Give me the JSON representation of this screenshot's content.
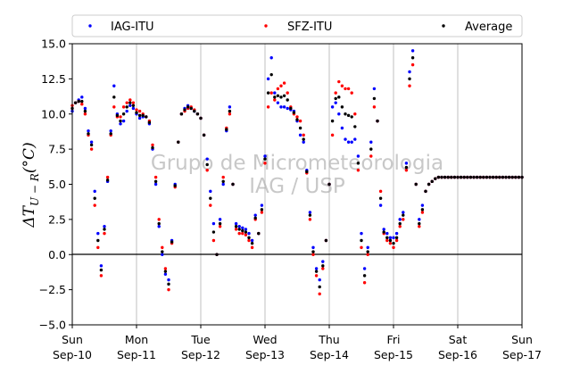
{
  "chart_data": {
    "type": "scatter",
    "ylabel_base": "ΔT",
    "ylabel_sub": "U − R",
    "ylabel_unit": "(°C)",
    "ylim": [
      -5.0,
      15.0
    ],
    "yticks": [
      -5.0,
      -2.5,
      0.0,
      2.5,
      5.0,
      7.5,
      10.0,
      12.5,
      15.0
    ],
    "ytick_labels": [
      "−5.0",
      "−2.5",
      "0.0",
      "2.5",
      "5.0",
      "7.5",
      "10.0",
      "12.5",
      "15.0"
    ],
    "xlim_days": [
      0,
      7
    ],
    "xticks": [
      {
        "day": 0,
        "weekday": "Sun",
        "date": "Sep-10"
      },
      {
        "day": 1,
        "weekday": "Mon",
        "date": "Sep-11"
      },
      {
        "day": 2,
        "weekday": "Tue",
        "date": "Sep-12"
      },
      {
        "day": 3,
        "weekday": "Wed",
        "date": "Sep-13"
      },
      {
        "day": 4,
        "weekday": "Thu",
        "date": "Sep-14"
      },
      {
        "day": 5,
        "weekday": "Fri",
        "date": "Sep-15"
      },
      {
        "day": 6,
        "weekday": "Sat",
        "date": "Sep-16"
      },
      {
        "day": 7,
        "weekday": "Sun",
        "date": "Sep-17"
      }
    ],
    "grid": "vertical",
    "zero_line": true,
    "legend_placement": "top",
    "watermark": [
      "Grupo de Micrometeorologia",
      "IAG / USP"
    ],
    "series": [
      {
        "name": "IAG-ITU",
        "color": "#0000ff",
        "x_days": [
          0.0,
          0.05,
          0.1,
          0.15,
          0.2,
          0.25,
          0.3,
          0.35,
          0.4,
          0.45,
          0.5,
          0.55,
          0.6,
          0.65,
          0.7,
          0.75,
          0.8,
          0.85,
          0.9,
          0.95,
          1.0,
          1.05,
          1.1,
          1.15,
          1.2,
          1.25,
          1.3,
          1.35,
          1.4,
          1.45,
          1.5,
          1.55,
          1.6,
          1.65,
          1.7,
          1.75,
          1.8,
          1.85,
          1.9,
          1.95,
          2.0,
          2.05,
          2.1,
          2.15,
          2.2,
          2.25,
          2.3,
          2.35,
          2.4,
          2.45,
          2.5,
          2.55,
          2.6,
          2.65,
          2.7,
          2.75,
          2.8,
          2.85,
          2.9,
          2.95,
          3.0,
          3.05,
          3.1,
          3.15,
          3.2,
          3.25,
          3.3,
          3.35,
          3.4,
          3.45,
          3.5,
          3.55,
          3.6,
          3.65,
          3.7,
          3.75,
          3.8,
          3.85,
          3.9,
          3.95,
          4.0,
          4.05,
          4.1,
          4.15,
          4.2,
          4.25,
          4.3,
          4.35,
          4.4,
          4.45,
          4.5,
          4.55,
          4.6,
          4.65,
          4.7,
          4.75,
          4.8,
          4.85,
          4.9,
          4.95,
          5.0,
          5.05,
          5.1,
          5.15,
          5.2,
          5.25,
          5.3,
          5.35,
          5.4,
          5.45,
          5.5,
          5.55,
          5.6,
          5.65,
          5.7,
          5.75,
          5.8,
          5.85,
          5.9,
          5.95,
          6.0,
          6.05,
          6.1,
          6.15,
          6.2,
          6.25,
          6.3,
          6.35,
          6.4,
          6.45,
          6.5,
          6.55,
          6.6,
          6.65,
          6.7,
          6.75,
          6.8,
          6.85,
          6.9,
          6.95,
          7.0
        ],
        "y": [
          10.2,
          10.8,
          11.0,
          11.2,
          10.4,
          8.8,
          8.0,
          4.5,
          1.5,
          -0.8,
          2.0,
          5.2,
          8.8,
          12.0,
          10.0,
          9.3,
          9.5,
          10.2,
          10.6,
          10.4,
          10.0,
          9.7,
          9.8,
          9.8,
          9.3,
          7.5,
          5.0,
          2.0,
          0.0,
          -1.4,
          -1.8,
          1.0,
          5.0,
          8.0,
          10.0,
          10.4,
          10.6,
          10.4,
          10.2,
          10.0,
          9.7,
          8.5,
          6.8,
          4.5,
          2.2,
          0.0,
          2.5,
          5.0,
          8.8,
          10.5,
          5.0,
          2.2,
          2.0,
          1.9,
          1.8,
          1.5,
          1.0,
          2.8,
          1.5,
          3.5,
          7.0,
          12.5,
          14.0,
          11.5,
          10.8,
          10.5,
          10.5,
          10.4,
          10.3,
          10.2,
          9.5,
          8.5,
          8.0,
          6.0,
          3.0,
          0.5,
          -1.0,
          -1.8,
          -0.5,
          1.0,
          5.0,
          10.5,
          10.8,
          10.0,
          9.0,
          8.2,
          8.0,
          8.0,
          8.2,
          7.0,
          1.5,
          -1.0,
          0.5,
          8.0,
          11.8,
          9.5,
          3.5,
          1.8,
          1.5,
          1.2,
          1.2,
          1.5,
          2.5,
          3.0,
          6.5,
          13.0,
          14.5,
          5.0,
          2.5,
          3.5,
          4.5,
          5.0,
          5.2,
          5.4,
          5.5,
          5.5,
          5.5,
          5.5,
          5.5,
          5.5,
          5.5,
          5.5,
          5.5,
          5.5,
          5.5,
          5.5,
          5.5,
          5.5,
          5.5,
          5.5,
          5.5,
          5.5,
          5.5,
          5.5,
          5.5,
          5.5,
          5.5,
          5.5,
          5.5,
          5.5,
          5.5
        ]
      },
      {
        "name": "SFZ-ITU",
        "color": "#ff0000",
        "x_days": [
          0.0,
          0.05,
          0.1,
          0.15,
          0.2,
          0.25,
          0.3,
          0.35,
          0.4,
          0.45,
          0.5,
          0.55,
          0.6,
          0.65,
          0.7,
          0.75,
          0.8,
          0.85,
          0.9,
          0.95,
          1.0,
          1.05,
          1.1,
          1.15,
          1.2,
          1.25,
          1.3,
          1.35,
          1.4,
          1.45,
          1.5,
          1.55,
          1.6,
          1.65,
          1.7,
          1.75,
          1.8,
          1.85,
          1.9,
          1.95,
          2.0,
          2.05,
          2.1,
          2.15,
          2.2,
          2.25,
          2.3,
          2.35,
          2.4,
          2.45,
          2.5,
          2.55,
          2.6,
          2.65,
          2.7,
          2.75,
          2.8,
          2.85,
          2.9,
          2.95,
          3.0,
          3.05,
          3.1,
          3.15,
          3.2,
          3.25,
          3.3,
          3.35,
          3.4,
          3.45,
          3.5,
          3.55,
          3.6,
          3.65,
          3.7,
          3.75,
          3.8,
          3.85,
          3.9,
          3.95,
          4.0,
          4.05,
          4.1,
          4.15,
          4.2,
          4.25,
          4.3,
          4.35,
          4.4,
          4.45,
          4.5,
          4.55,
          4.6,
          4.65,
          4.7,
          4.75,
          4.8,
          4.85,
          4.9,
          4.95,
          5.0,
          5.05,
          5.1,
          5.15,
          5.2,
          5.25,
          5.3,
          5.35,
          5.4,
          5.45,
          5.5,
          5.55,
          5.6,
          5.65,
          5.7,
          5.75,
          5.8,
          5.85,
          5.9,
          5.95,
          6.0,
          6.05,
          6.1,
          6.15,
          6.2,
          6.25,
          6.3,
          6.35,
          6.4,
          6.45,
          6.5,
          6.55,
          6.6,
          6.65,
          6.7,
          6.75,
          6.8,
          6.85,
          6.9,
          6.95,
          7.0
        ],
        "y": [
          10.6,
          10.8,
          10.9,
          10.7,
          10.0,
          8.5,
          7.5,
          3.5,
          0.5,
          -1.5,
          1.5,
          5.5,
          8.5,
          10.5,
          9.8,
          9.8,
          10.5,
          10.8,
          11.0,
          10.8,
          10.3,
          10.2,
          10.0,
          9.8,
          9.5,
          7.8,
          5.5,
          2.5,
          0.5,
          -1.0,
          -2.5,
          0.8,
          4.8,
          8.0,
          10.0,
          10.2,
          10.4,
          10.5,
          10.3,
          10.0,
          9.7,
          8.5,
          6.0,
          3.5,
          1.0,
          0.0,
          2.0,
          5.5,
          9.0,
          10.0,
          5.0,
          1.8,
          1.5,
          1.5,
          1.4,
          1.0,
          0.5,
          2.5,
          1.5,
          3.0,
          6.5,
          10.5,
          11.5,
          11.0,
          11.8,
          12.0,
          12.2,
          11.5,
          10.5,
          10.0,
          9.8,
          9.5,
          8.5,
          5.8,
          2.5,
          0.0,
          -1.5,
          -2.8,
          -1.0,
          1.0,
          5.0,
          8.5,
          11.5,
          12.3,
          12.0,
          11.8,
          11.8,
          11.5,
          10.0,
          6.0,
          0.5,
          -2.0,
          0.0,
          7.0,
          10.5,
          9.5,
          4.5,
          1.5,
          1.0,
          0.8,
          0.5,
          1.0,
          2.0,
          2.5,
          6.0,
          12.0,
          13.5,
          5.0,
          2.0,
          3.0,
          4.5,
          5.0,
          5.2,
          5.4,
          5.5,
          5.5,
          5.5,
          5.5,
          5.5,
          5.5,
          5.5,
          5.5,
          5.5,
          5.5,
          5.5,
          5.5,
          5.5,
          5.5,
          5.5,
          5.5,
          5.5,
          5.5,
          5.5,
          5.5,
          5.5,
          5.5,
          5.5,
          5.5,
          5.5,
          5.5,
          5.5
        ]
      },
      {
        "name": "Average",
        "color": "#000000",
        "x_days": [
          0.0,
          0.05,
          0.1,
          0.15,
          0.2,
          0.25,
          0.3,
          0.35,
          0.4,
          0.45,
          0.5,
          0.55,
          0.6,
          0.65,
          0.7,
          0.75,
          0.8,
          0.85,
          0.9,
          0.95,
          1.0,
          1.05,
          1.1,
          1.15,
          1.2,
          1.25,
          1.3,
          1.35,
          1.4,
          1.45,
          1.5,
          1.55,
          1.6,
          1.65,
          1.7,
          1.75,
          1.8,
          1.85,
          1.9,
          1.95,
          2.0,
          2.05,
          2.1,
          2.15,
          2.2,
          2.25,
          2.3,
          2.35,
          2.4,
          2.45,
          2.5,
          2.55,
          2.6,
          2.65,
          2.7,
          2.75,
          2.8,
          2.85,
          2.9,
          2.95,
          3.0,
          3.05,
          3.1,
          3.15,
          3.2,
          3.25,
          3.3,
          3.35,
          3.4,
          3.45,
          3.5,
          3.55,
          3.6,
          3.65,
          3.7,
          3.75,
          3.8,
          3.85,
          3.9,
          3.95,
          4.0,
          4.05,
          4.1,
          4.15,
          4.2,
          4.25,
          4.3,
          4.35,
          4.4,
          4.45,
          4.5,
          4.55,
          4.6,
          4.65,
          4.7,
          4.75,
          4.8,
          4.85,
          4.9,
          4.95,
          5.0,
          5.05,
          5.1,
          5.15,
          5.2,
          5.25,
          5.3,
          5.35,
          5.4,
          5.45,
          5.5,
          5.55,
          5.6,
          5.65,
          5.7,
          5.75,
          5.8,
          5.85,
          5.9,
          5.95,
          6.0,
          6.05,
          6.1,
          6.15,
          6.2,
          6.25,
          6.3,
          6.35,
          6.4,
          6.45,
          6.5,
          6.55,
          6.6,
          6.65,
          6.7,
          6.75,
          6.8,
          6.85,
          6.9,
          6.95,
          7.0
        ],
        "y": [
          10.4,
          10.8,
          10.9,
          10.9,
          10.2,
          8.6,
          7.8,
          4.0,
          1.0,
          -1.1,
          1.8,
          5.3,
          8.6,
          11.2,
          9.9,
          9.5,
          10.0,
          10.5,
          10.8,
          10.6,
          10.1,
          9.9,
          9.9,
          9.8,
          9.4,
          7.6,
          5.2,
          2.2,
          0.2,
          -1.2,
          -2.1,
          0.9,
          4.9,
          8.0,
          10.0,
          10.3,
          10.5,
          10.4,
          10.2,
          10.0,
          9.7,
          8.5,
          6.4,
          4.0,
          1.6,
          0.0,
          2.2,
          5.2,
          8.9,
          10.2,
          5.0,
          2.0,
          1.8,
          1.7,
          1.6,
          1.2,
          0.8,
          2.6,
          1.5,
          3.2,
          6.8,
          11.5,
          12.8,
          11.2,
          11.3,
          11.2,
          11.3,
          11.0,
          10.4,
          10.1,
          9.6,
          9.0,
          8.2,
          5.9,
          2.8,
          0.2,
          -1.2,
          -2.3,
          -0.8,
          1.0,
          5.0,
          9.5,
          11.1,
          11.2,
          10.5,
          10.0,
          9.9,
          9.8,
          9.1,
          6.5,
          1.0,
          -1.5,
          0.2,
          7.5,
          11.1,
          9.5,
          4.0,
          1.6,
          1.2,
          1.0,
          0.8,
          1.2,
          2.2,
          2.8,
          6.2,
          12.5,
          14.0,
          5.0,
          2.2,
          3.2,
          4.5,
          5.0,
          5.2,
          5.4,
          5.5,
          5.5,
          5.5,
          5.5,
          5.5,
          5.5,
          5.5,
          5.5,
          5.5,
          5.5,
          5.5,
          5.5,
          5.5,
          5.5,
          5.5,
          5.5,
          5.5,
          5.5,
          5.5,
          5.5,
          5.5,
          5.5,
          5.5,
          5.5,
          5.5,
          5.5,
          5.5
        ]
      }
    ]
  }
}
